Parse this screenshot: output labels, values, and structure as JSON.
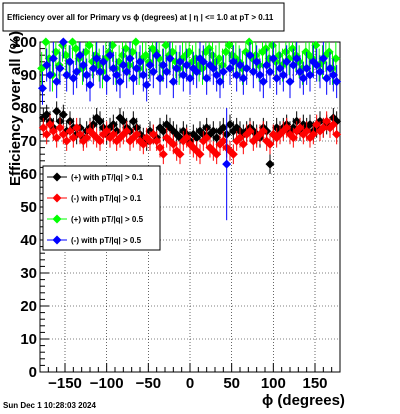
{
  "chart_data": {
    "type": "scatter",
    "title": "Efficiency over all for Primary vs ϕ (degrees) at | η | <= 1.0 at pT > 0.11",
    "xlabel": "ϕ (degrees)",
    "ylabel": "Efficiency over all (%)",
    "xlim": [
      -180,
      180
    ],
    "ylim": [
      0,
      100
    ],
    "x_ticks": [
      -150,
      -100,
      -50,
      0,
      50,
      100,
      150
    ],
    "x_tick_labels": [
      "−150",
      "−100",
      "−50",
      "0",
      "50",
      "100",
      "150"
    ],
    "y_ticks": [
      0,
      10,
      20,
      30,
      40,
      50,
      60,
      70,
      80,
      90,
      100
    ],
    "y_tick_labels": [
      "0",
      "10",
      "20",
      "30",
      "40",
      "50",
      "60",
      "70",
      "80",
      "90",
      "100"
    ],
    "grid": true,
    "legend_position": "left-middle",
    "timestamp": "Sun Dec  1 10:28:03 2024",
    "series": [
      {
        "name": "(+) with pT/|q| > 0.1",
        "color": "#000000",
        "x": [
          -176,
          -172,
          -168,
          -164,
          -160,
          -156,
          -152,
          -148,
          -144,
          -140,
          -136,
          -132,
          -128,
          -124,
          -120,
          -116,
          -112,
          -108,
          -104,
          -100,
          -96,
          -92,
          -88,
          -84,
          -80,
          -76,
          -72,
          -68,
          -64,
          -60,
          -56,
          -52,
          -48,
          -44,
          -40,
          -36,
          -32,
          -28,
          -24,
          -20,
          -16,
          -12,
          -8,
          -4,
          0,
          4,
          8,
          12,
          16,
          20,
          24,
          28,
          32,
          36,
          40,
          44,
          48,
          52,
          56,
          60,
          64,
          68,
          72,
          76,
          80,
          84,
          88,
          92,
          96,
          100,
          104,
          108,
          112,
          116,
          120,
          124,
          128,
          132,
          136,
          140,
          144,
          148,
          152,
          156,
          160,
          164,
          168,
          172,
          176
        ],
        "y": [
          77,
          78,
          76,
          74,
          79,
          76,
          78,
          73,
          76,
          74,
          72,
          74,
          71,
          73,
          74,
          75,
          77,
          76,
          74,
          72,
          74,
          75,
          73,
          77,
          76,
          74,
          73,
          76,
          74,
          72,
          71,
          70,
          73,
          72,
          71,
          74,
          73,
          75,
          74,
          73,
          72,
          71,
          73,
          72,
          70,
          72,
          71,
          73,
          72,
          74,
          72,
          73,
          71,
          73,
          74,
          72,
          75,
          73,
          74,
          73,
          72,
          73,
          74,
          73,
          72,
          71,
          74,
          73,
          63,
          72,
          74,
          73,
          74,
          75,
          73,
          74,
          76,
          73,
          75,
          74,
          75,
          73,
          74,
          76,
          74,
          75,
          74,
          77,
          76
        ],
        "err": [
          3,
          3,
          3,
          3,
          3,
          3,
          3,
          3,
          3,
          3,
          3,
          3,
          3,
          3,
          3,
          3,
          3,
          3,
          3,
          3,
          3,
          3,
          3,
          3,
          3,
          3,
          3,
          3,
          3,
          3,
          3,
          3,
          3,
          3,
          3,
          3,
          3,
          3,
          3,
          3,
          3,
          3,
          3,
          3,
          3,
          3,
          3,
          3,
          3,
          3,
          3,
          3,
          3,
          3,
          3,
          3,
          3,
          3,
          3,
          3,
          3,
          3,
          3,
          3,
          3,
          3,
          3,
          3,
          3,
          3,
          3,
          3,
          3,
          3,
          3,
          3,
          3,
          3,
          3,
          3,
          3,
          3,
          3,
          3,
          3,
          3,
          3,
          3,
          3
        ]
      },
      {
        "name": "(-) with pT/|q| > 0.1",
        "color": "#ff0000",
        "x": [
          -176,
          -172,
          -168,
          -164,
          -160,
          -156,
          -152,
          -148,
          -144,
          -140,
          -136,
          -132,
          -128,
          -124,
          -120,
          -116,
          -112,
          -108,
          -104,
          -100,
          -96,
          -92,
          -88,
          -84,
          -80,
          -76,
          -72,
          -68,
          -64,
          -60,
          -56,
          -52,
          -48,
          -44,
          -40,
          -36,
          -32,
          -28,
          -24,
          -20,
          -16,
          -12,
          -8,
          -4,
          0,
          4,
          8,
          12,
          16,
          20,
          24,
          28,
          32,
          36,
          40,
          44,
          48,
          52,
          56,
          60,
          64,
          68,
          72,
          76,
          80,
          84,
          88,
          92,
          96,
          100,
          104,
          108,
          112,
          116,
          120,
          124,
          128,
          132,
          136,
          140,
          144,
          148,
          152,
          156,
          160,
          164,
          168,
          172,
          176
        ],
        "y": [
          74,
          72,
          75,
          73,
          71,
          74,
          72,
          70,
          73,
          71,
          74,
          72,
          70,
          71,
          73,
          72,
          71,
          70,
          72,
          73,
          71,
          72,
          70,
          71,
          72,
          73,
          70,
          71,
          72,
          70,
          69,
          71,
          70,
          72,
          70,
          68,
          66,
          71,
          70,
          69,
          67,
          66,
          70,
          71,
          69,
          68,
          67,
          66,
          70,
          71,
          68,
          67,
          66,
          69,
          70,
          68,
          67,
          66,
          70,
          71,
          69,
          72,
          73,
          70,
          71,
          72,
          73,
          70,
          69,
          72,
          71,
          72,
          73,
          74,
          72,
          71,
          73,
          74,
          72,
          73,
          71,
          72,
          75,
          73,
          74,
          76,
          74,
          75,
          72
        ],
        "err": [
          3,
          3,
          3,
          3,
          3,
          3,
          3,
          3,
          3,
          3,
          3,
          3,
          3,
          3,
          3,
          3,
          3,
          3,
          3,
          3,
          3,
          3,
          3,
          3,
          3,
          3,
          3,
          3,
          3,
          3,
          3,
          3,
          3,
          3,
          3,
          3,
          3,
          3,
          3,
          3,
          3,
          3,
          3,
          3,
          3,
          3,
          3,
          3,
          3,
          3,
          3,
          3,
          3,
          3,
          3,
          3,
          3,
          3,
          3,
          3,
          3,
          3,
          3,
          3,
          3,
          3,
          3,
          3,
          3,
          3,
          3,
          3,
          3,
          3,
          3,
          3,
          3,
          3,
          3,
          3,
          3,
          3,
          3,
          3,
          3,
          3,
          3,
          3,
          3
        ]
      },
      {
        "name": "(+) with pT/|q| > 0.5",
        "color": "#00ff00",
        "x": [
          -178,
          -173,
          -169,
          -165,
          -161,
          -157,
          -153,
          -149,
          -145,
          -141,
          -137,
          -133,
          -129,
          -125,
          -121,
          -117,
          -113,
          -109,
          -105,
          -101,
          -97,
          -93,
          -89,
          -85,
          -81,
          -77,
          -73,
          -69,
          -65,
          -61,
          -57,
          -53,
          -49,
          -45,
          -41,
          -37,
          -33,
          -29,
          -25,
          -21,
          -17,
          -13,
          -9,
          -5,
          -1,
          3,
          7,
          11,
          15,
          19,
          23,
          27,
          31,
          35,
          39,
          43,
          47,
          51,
          55,
          59,
          63,
          67,
          71,
          75,
          79,
          83,
          87,
          91,
          95,
          99,
          103,
          107,
          111,
          115,
          119,
          123,
          127,
          131,
          135,
          139,
          143,
          147,
          151,
          155,
          159,
          163,
          167,
          171,
          175
        ],
        "y": [
          92,
          100,
          95,
          90,
          97,
          93,
          99,
          96,
          94,
          100,
          98,
          95,
          92,
          97,
          99,
          94,
          96,
          93,
          91,
          95,
          97,
          99,
          92,
          94,
          96,
          98,
          93,
          97,
          100,
          92,
          95,
          96,
          94,
          98,
          97,
          95,
          93,
          99,
          96,
          97,
          94,
          92,
          95,
          96,
          97,
          94,
          95,
          93,
          92,
          97,
          98,
          96,
          94,
          95,
          93,
          97,
          99,
          96,
          95,
          94,
          92,
          97,
          100,
          95,
          96,
          93,
          97,
          98,
          95,
          99,
          94,
          96,
          93,
          97,
          95,
          98,
          96,
          94,
          92,
          97,
          96,
          95,
          99,
          93,
          94,
          96,
          97,
          92,
          95
        ],
        "err": [
          5,
          5,
          5,
          5,
          5,
          5,
          5,
          5,
          5,
          5,
          5,
          5,
          5,
          5,
          5,
          5,
          5,
          5,
          5,
          5,
          5,
          5,
          5,
          5,
          5,
          5,
          5,
          5,
          5,
          5,
          5,
          5,
          5,
          5,
          5,
          5,
          5,
          5,
          5,
          5,
          5,
          5,
          5,
          5,
          5,
          5,
          5,
          5,
          5,
          5,
          5,
          5,
          5,
          5,
          5,
          5,
          5,
          5,
          5,
          5,
          5,
          5,
          5,
          5,
          5,
          5,
          5,
          5,
          5,
          5,
          5,
          5,
          5,
          5,
          5,
          5,
          5,
          5,
          5,
          5,
          5,
          5,
          5,
          5,
          5,
          5,
          5,
          5,
          5
        ]
      },
      {
        "name": "(-) with pT/|q| > 0.5",
        "color": "#0000ff",
        "x": [
          -177,
          -172,
          -168,
          -164,
          -160,
          -156,
          -152,
          -148,
          -144,
          -140,
          -136,
          -132,
          -128,
          -124,
          -120,
          -116,
          -112,
          -108,
          -104,
          -100,
          -96,
          -92,
          -88,
          -84,
          -80,
          -76,
          -72,
          -68,
          -64,
          -60,
          -56,
          -52,
          -48,
          -44,
          -40,
          -36,
          -32,
          -28,
          -24,
          -20,
          -16,
          -12,
          -8,
          -4,
          0,
          4,
          8,
          12,
          16,
          20,
          24,
          28,
          32,
          36,
          40,
          44,
          48,
          52,
          56,
          60,
          64,
          68,
          72,
          76,
          80,
          84,
          88,
          92,
          96,
          100,
          104,
          108,
          112,
          116,
          120,
          124,
          128,
          132,
          136,
          140,
          144,
          148,
          152,
          156,
          160,
          164,
          168,
          172,
          176
        ],
        "y": [
          86,
          93,
          90,
          95,
          88,
          92,
          100,
          90,
          94,
          89,
          91,
          96,
          93,
          90,
          87,
          92,
          95,
          91,
          94,
          89,
          96,
          92,
          90,
          88,
          93,
          91,
          95,
          89,
          92,
          94,
          90,
          87,
          93,
          91,
          96,
          89,
          93,
          91,
          95,
          88,
          92,
          94,
          90,
          93,
          89,
          92,
          91,
          95,
          94,
          89,
          93,
          92,
          90,
          88,
          91,
          63,
          92,
          94,
          90,
          93,
          89,
          92,
          96,
          91,
          94,
          90,
          88,
          93,
          91,
          95,
          89,
          92,
          90,
          94,
          88,
          93,
          95,
          91,
          89,
          92,
          90,
          94,
          93,
          91,
          95,
          89,
          92,
          90,
          88
        ],
        "err": [
          5,
          5,
          5,
          5,
          5,
          5,
          5,
          5,
          5,
          5,
          5,
          5,
          5,
          5,
          5,
          5,
          5,
          5,
          5,
          5,
          5,
          5,
          5,
          5,
          5,
          5,
          5,
          5,
          5,
          5,
          5,
          5,
          5,
          5,
          5,
          5,
          5,
          5,
          5,
          5,
          5,
          5,
          5,
          5,
          5,
          5,
          5,
          5,
          5,
          5,
          5,
          5,
          5,
          5,
          5,
          17,
          5,
          5,
          5,
          5,
          5,
          5,
          5,
          5,
          5,
          5,
          5,
          5,
          5,
          5,
          5,
          5,
          5,
          5,
          5,
          5,
          5,
          5,
          5,
          5,
          5,
          5,
          5,
          5,
          5,
          5,
          5,
          5,
          5
        ]
      }
    ]
  }
}
